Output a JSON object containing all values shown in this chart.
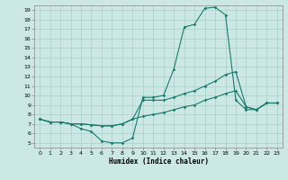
{
  "title": "",
  "xlabel": "Humidex (Indice chaleur)",
  "bg_color": "#cce8e4",
  "grid_color": "#aacfcb",
  "line_color": "#1a7a6e",
  "xlim": [
    -0.5,
    23.5
  ],
  "ylim": [
    4.5,
    19.5
  ],
  "xticks": [
    0,
    1,
    2,
    3,
    4,
    5,
    6,
    7,
    8,
    9,
    10,
    11,
    12,
    13,
    14,
    15,
    16,
    17,
    18,
    19,
    20,
    21,
    22,
    23
  ],
  "yticks": [
    5,
    6,
    7,
    8,
    9,
    10,
    11,
    12,
    13,
    14,
    15,
    16,
    17,
    18,
    19
  ],
  "curve1_x": [
    0,
    1,
    2,
    3,
    4,
    5,
    6,
    7,
    8,
    9,
    10,
    11,
    12,
    13,
    14,
    15,
    16,
    17,
    18,
    19,
    20,
    21,
    22,
    23
  ],
  "curve1_y": [
    7.5,
    7.2,
    7.2,
    7.0,
    6.5,
    6.2,
    5.2,
    5.0,
    5.0,
    5.5,
    9.8,
    9.8,
    10.0,
    12.8,
    17.2,
    17.5,
    19.2,
    19.3,
    18.5,
    9.5,
    8.5,
    8.5,
    9.2,
    9.2
  ],
  "curve2_x": [
    0,
    1,
    2,
    3,
    4,
    5,
    6,
    7,
    8,
    9,
    10,
    11,
    12,
    13,
    14,
    15,
    16,
    17,
    18,
    19,
    20,
    21,
    22,
    23
  ],
  "curve2_y": [
    7.5,
    7.2,
    7.2,
    7.0,
    7.0,
    6.9,
    6.8,
    6.8,
    7.0,
    7.5,
    9.5,
    9.5,
    9.5,
    9.8,
    10.2,
    10.5,
    11.0,
    11.5,
    12.2,
    12.5,
    8.8,
    8.5,
    9.2,
    9.2
  ],
  "curve3_x": [
    0,
    1,
    2,
    3,
    4,
    5,
    6,
    7,
    8,
    9,
    10,
    11,
    12,
    13,
    14,
    15,
    16,
    17,
    18,
    19,
    20,
    21,
    22,
    23
  ],
  "curve3_y": [
    7.5,
    7.2,
    7.2,
    7.0,
    7.0,
    6.9,
    6.8,
    6.8,
    7.0,
    7.5,
    7.8,
    8.0,
    8.2,
    8.5,
    8.8,
    9.0,
    9.5,
    9.8,
    10.2,
    10.5,
    8.8,
    8.5,
    9.2,
    9.2
  ]
}
